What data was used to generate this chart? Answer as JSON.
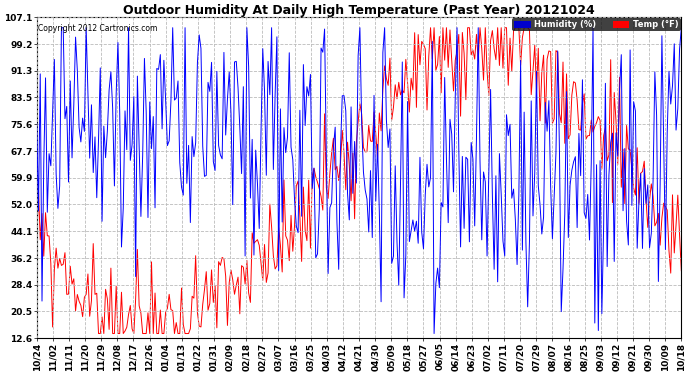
{
  "title": "Outdoor Humidity At Daily High Temperature (Past Year) 20121024",
  "copyright": "Copyright 2012 Cartronics.com",
  "legend_humidity": "Humidity (%)",
  "legend_temp": "Temp (°F)",
  "yticks": [
    12.6,
    20.5,
    28.4,
    36.2,
    44.1,
    52.0,
    59.9,
    67.7,
    75.6,
    83.5,
    91.3,
    99.2,
    107.1
  ],
  "xlabels": [
    "10/24",
    "11/02",
    "11/11",
    "11/20",
    "11/29",
    "12/08",
    "12/17",
    "12/26",
    "01/04",
    "01/13",
    "01/22",
    "01/31",
    "02/09",
    "02/18",
    "02/27",
    "03/07",
    "03/16",
    "03/25",
    "04/03",
    "04/12",
    "04/21",
    "04/30",
    "05/09",
    "05/18",
    "05/27",
    "06/05",
    "06/14",
    "06/23",
    "07/02",
    "07/11",
    "07/20",
    "07/29",
    "08/07",
    "08/16",
    "08/25",
    "09/03",
    "09/12",
    "09/21",
    "09/30",
    "10/09",
    "10/18"
  ],
  "bg_color": "#FFFFFF",
  "grid_color": "#BBBBBB",
  "humidity_color": "#0000FF",
  "temp_color": "#FF0000",
  "humidity_legend_bg": "#0000CC",
  "temp_legend_bg": "#FF0000",
  "title_fontsize": 9,
  "tick_fontsize": 6.5,
  "n_days": 366,
  "ymin": 12.6,
  "ymax": 107.1
}
